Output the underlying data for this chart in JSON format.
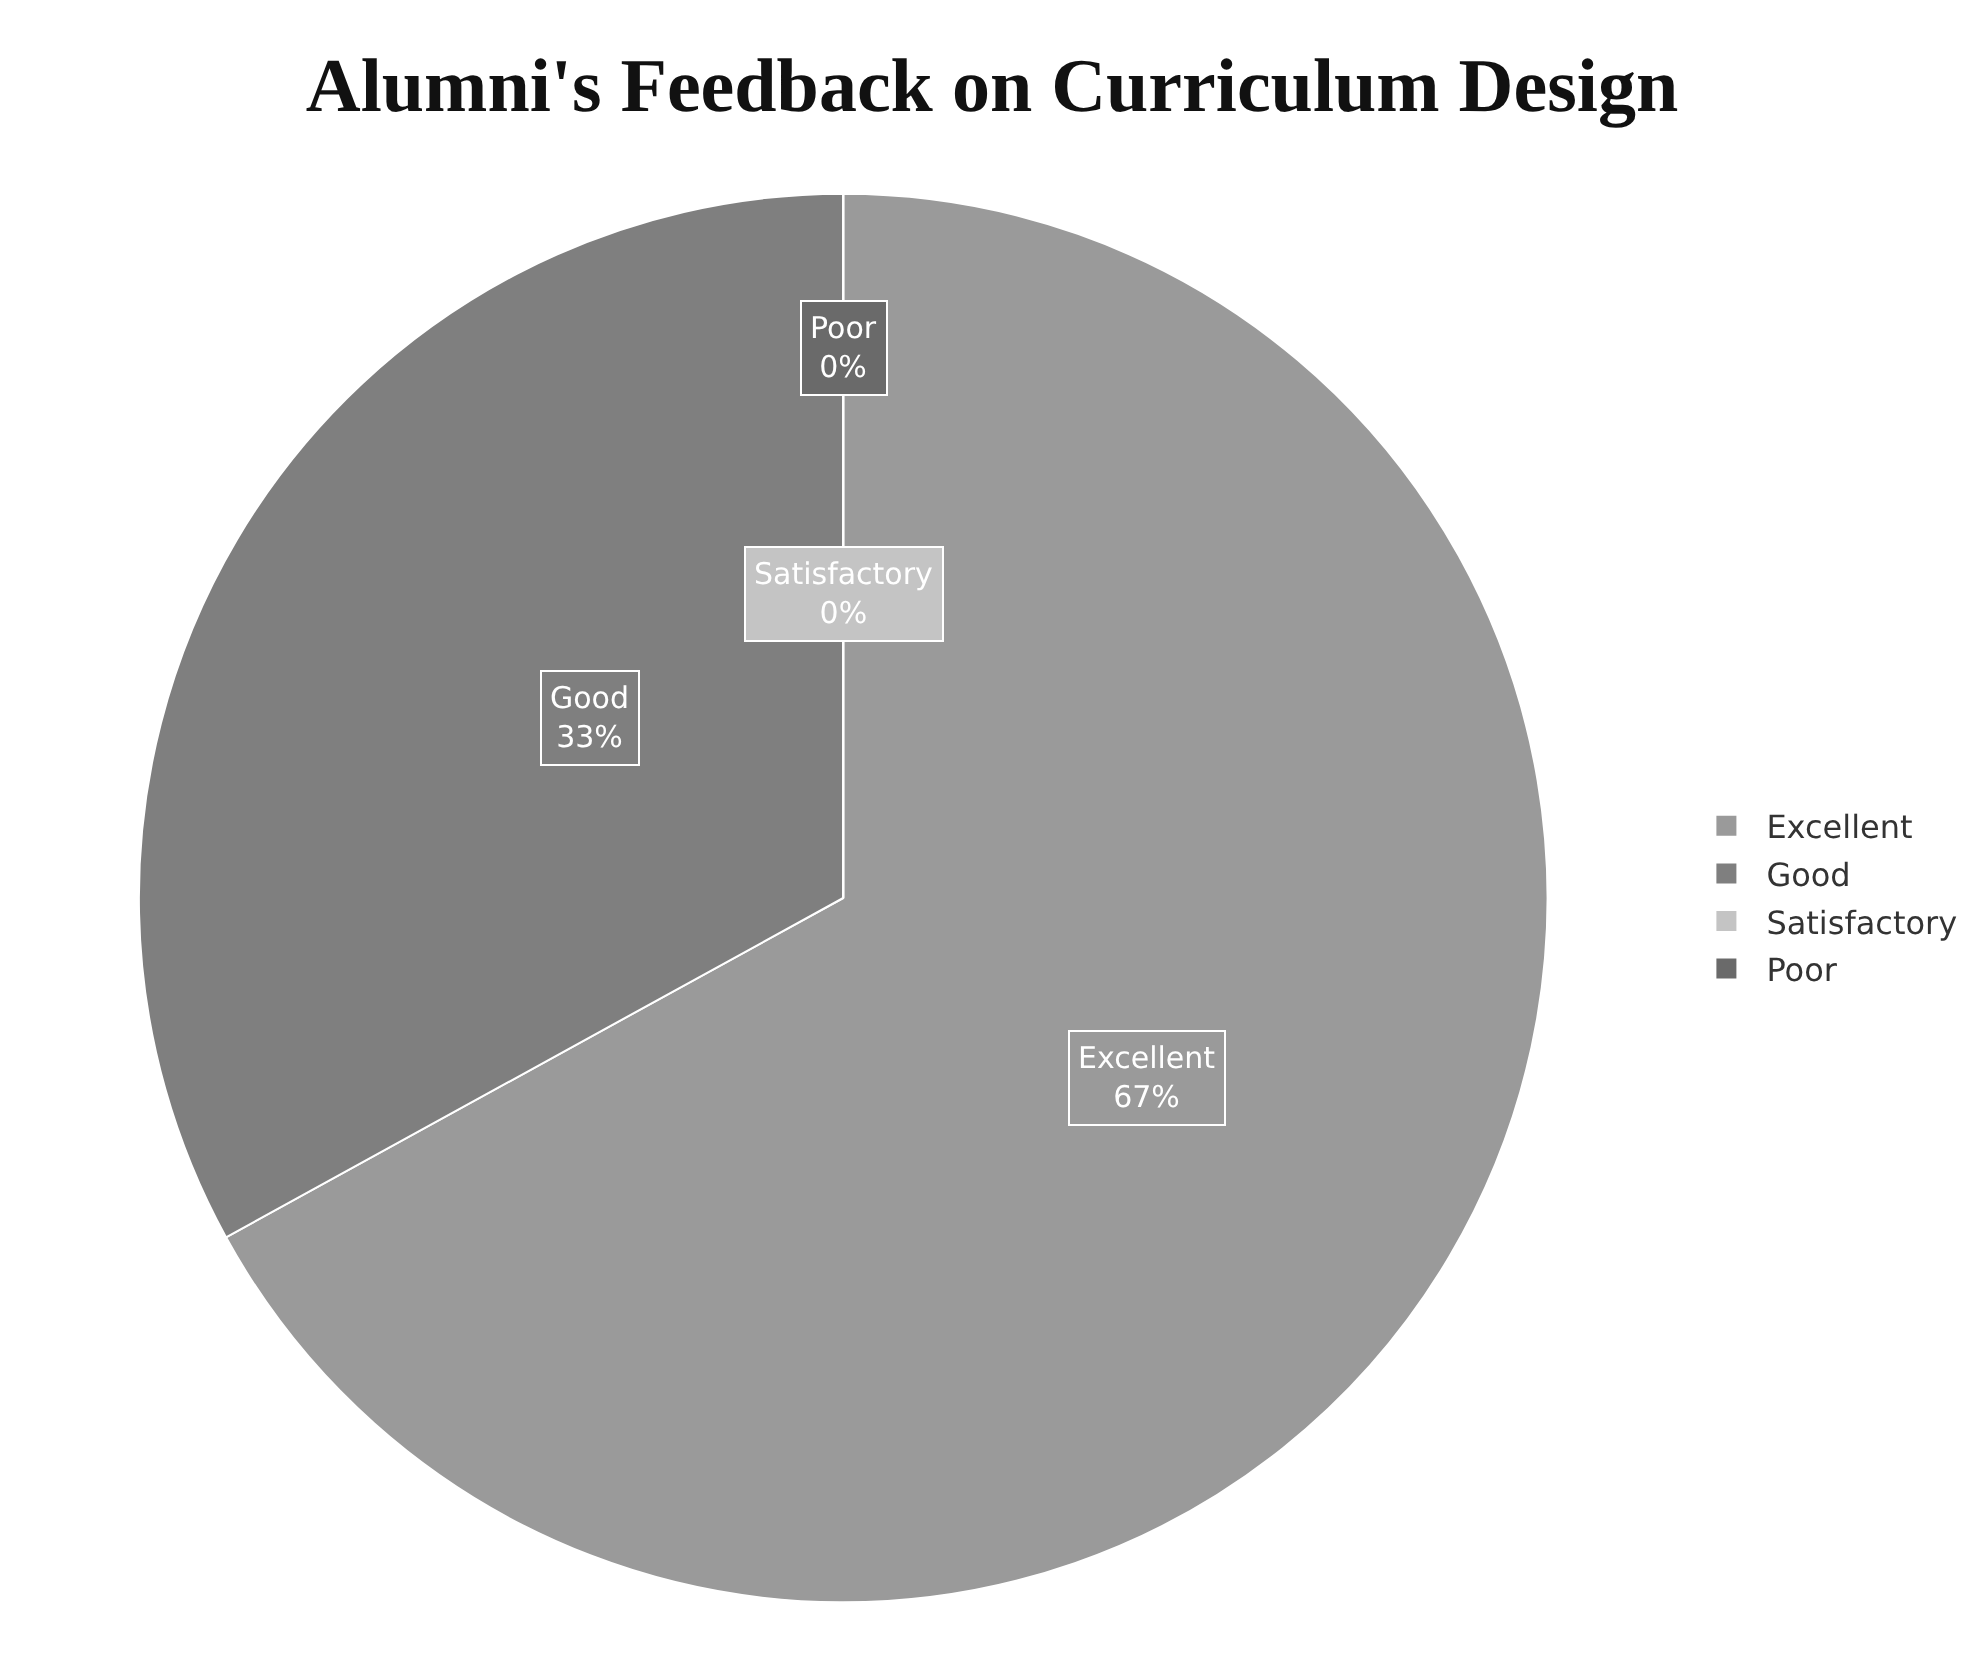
{
  "chart_data": {
    "type": "pie",
    "title": "Alumni's Feedback on Curriculum Design",
    "categories": [
      "Excellent",
      "Good",
      "Satisfactory",
      "Poor"
    ],
    "values": [
      67,
      33,
      0,
      0
    ],
    "colors": [
      "#9a9a9a",
      "#7f7f7f",
      "#c4c4c4",
      "#6a6a6a"
    ],
    "value_labels": [
      "67%",
      "33%",
      "0%",
      "0%"
    ],
    "legend": "right"
  }
}
